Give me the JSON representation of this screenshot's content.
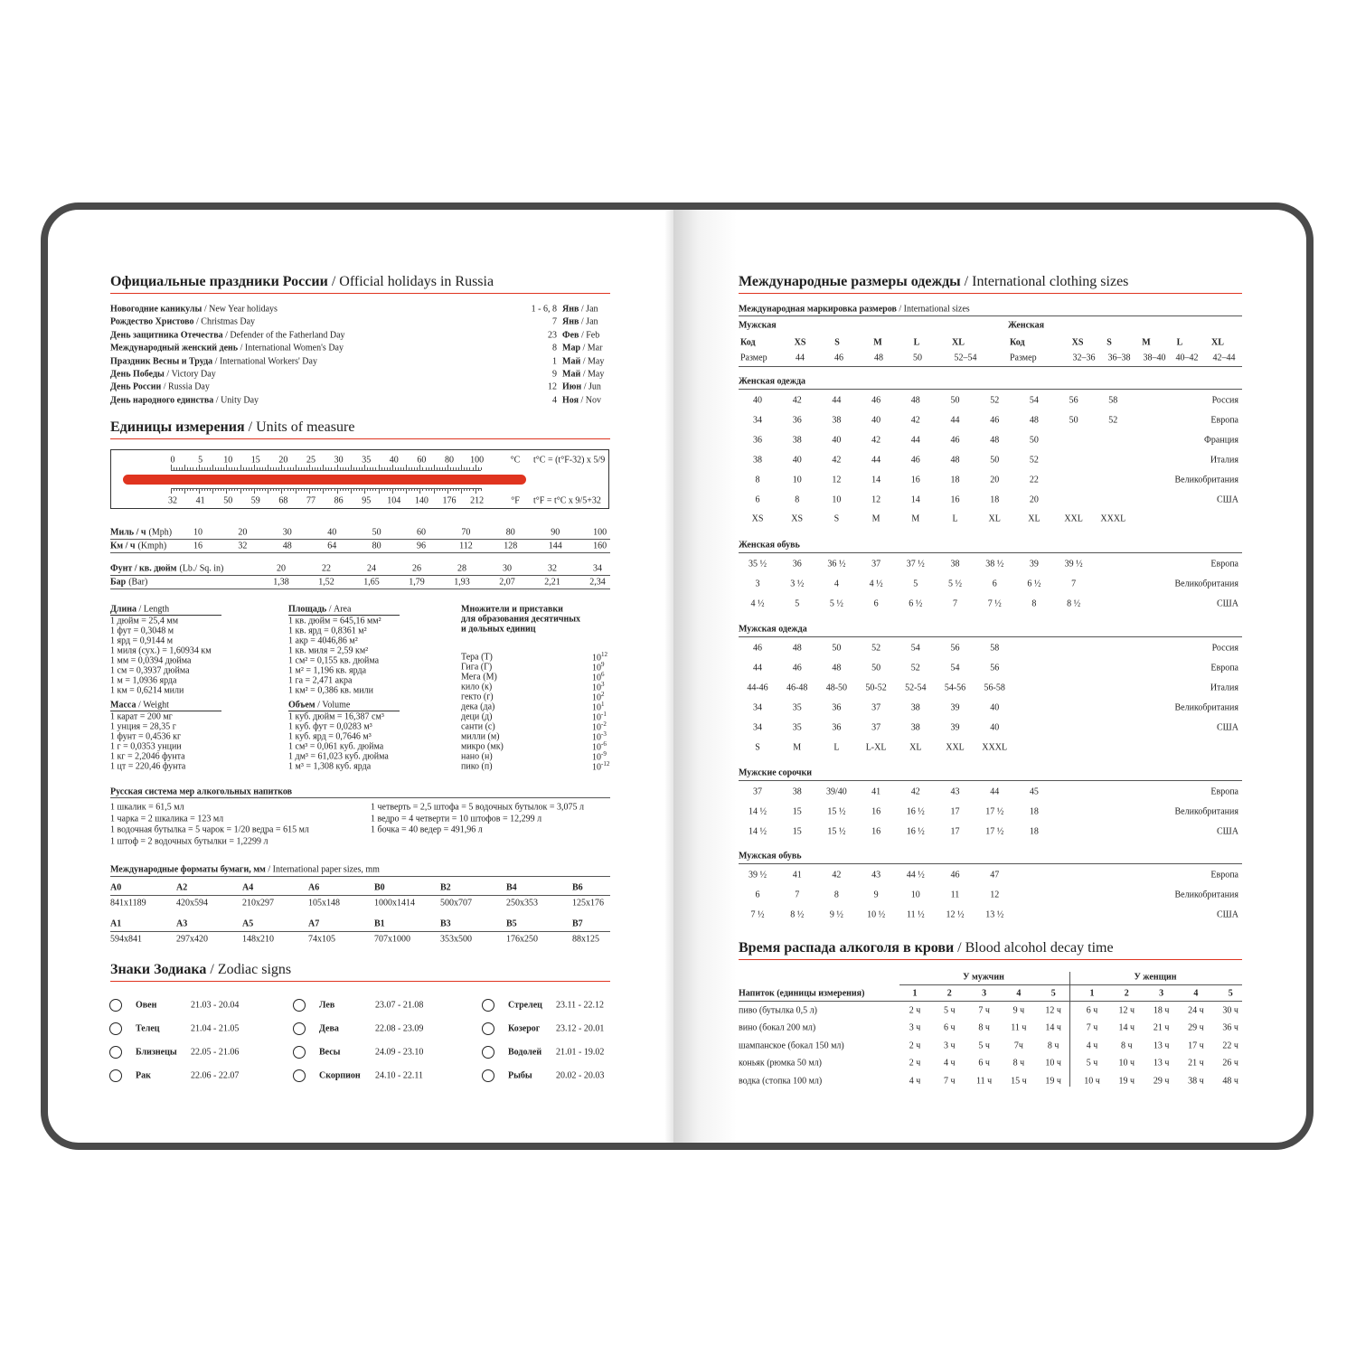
{
  "left": {
    "holidays": {
      "title": "Официальные праздники России",
      "title_en": "Official holidays in Russia",
      "rows": [
        {
          "name": "Новогодние каникулы",
          "en": "New Year holidays",
          "day": "1 - 6, 8",
          "month": "Янв",
          "month_en": "Jan"
        },
        {
          "name": "Рождество Христово",
          "en": "Christmas Day",
          "day": "7",
          "month": "Янв",
          "month_en": "Jan"
        },
        {
          "name": "День защитника Отечества",
          "en": "Defender of the Fatherland Day",
          "day": "23",
          "month": "Фев",
          "month_en": "Feb"
        },
        {
          "name": "Международный женский день",
          "en": "International Women's Day",
          "day": "8",
          "month": "Мар",
          "month_en": "Mar"
        },
        {
          "name": "Праздник Весны и Труда",
          "en": "International Workers' Day",
          "day": "1",
          "month": "Май",
          "month_en": "May"
        },
        {
          "name": "День Победы",
          "en": "Victory Day",
          "day": "9",
          "month": "Май",
          "month_en": "May"
        },
        {
          "name": "День России",
          "en": "Russia Day",
          "day": "12",
          "month": "Июн",
          "month_en": "Jun"
        },
        {
          "name": "День народного единства",
          "en": "Unity Day",
          "day": "4",
          "month": "Ноя",
          "month_en": "Nov"
        }
      ]
    },
    "units": {
      "title": "Единицы измерения",
      "title_en": "Units of measure",
      "celsius": [
        "0",
        "5",
        "10",
        "15",
        "20",
        "25",
        "30",
        "35",
        "40",
        "60",
        "80",
        "100"
      ],
      "c_unit": "°C",
      "c_formula": "t°C = (t°F-32) x 5/9",
      "fahrenheit": [
        "32",
        "41",
        "50",
        "59",
        "68",
        "77",
        "86",
        "95",
        "104",
        "140",
        "176",
        "212"
      ],
      "f_unit": "°F",
      "f_formula": "t°F = t°C x 9/5+32",
      "speed": [
        {
          "label": "Миль / ч",
          "unit": "(Mph)",
          "values": [
            "10",
            "20",
            "30",
            "40",
            "50",
            "60",
            "70",
            "80",
            "90",
            "100"
          ]
        },
        {
          "label": "Км / ч",
          "unit": "(Kmph)",
          "values": [
            "16",
            "32",
            "48",
            "64",
            "80",
            "96",
            "112",
            "128",
            "144",
            "160"
          ]
        }
      ],
      "pressure": [
        {
          "label": "Фунт / кв. дюйм",
          "unit": "(Lb./ Sq. in)",
          "values": [
            "20",
            "22",
            "24",
            "26",
            "28",
            "30",
            "32",
            "34"
          ]
        },
        {
          "label": "Бар",
          "unit": "(Bar)",
          "values": [
            "1,38",
            "1,52",
            "1,65",
            "1,79",
            "1,93",
            "2,07",
            "2,21",
            "2,34"
          ]
        }
      ],
      "conversions": [
        {
          "title": "Длина",
          "title_en": "Length",
          "lines": [
            "1 дюйм = 25,4 мм",
            "1 фут = 0,3048 м",
            "1 ярд = 0,9144 м",
            "1 миля (сух.) = 1,60934 км",
            "1 мм = 0,0394 дюйма",
            "1 см = 0,3937 дюйма",
            "1 м = 1,0936 ярда",
            "1 км = 0,6214 мили"
          ]
        },
        {
          "title": "Масса",
          "title_en": "Weight",
          "lines": [
            "1 карат = 200 мг",
            "1 унция = 28,35 г",
            "1 фунт = 0,4536 кг",
            "1 г = 0,0353 унции",
            "1 кг = 2,2046 фунта",
            "1 цт = 220,46 фунта"
          ]
        },
        {
          "title": "Площадь",
          "title_en": "Area",
          "lines": [
            "1 кв. дюйм = 645,16 мм²",
            "1 кв. ярд = 0,8361 м²",
            "1 акр = 4046,86 м²",
            "1 кв. миля = 2,59 км²",
            "1 см² = 0,155 кв. дюйма",
            "1 м² = 1,196 кв. ярда",
            "1 га = 2,471 акра",
            "1 км² = 0,386 кв. мили"
          ]
        },
        {
          "title": "Объем",
          "title_en": "Volume",
          "lines": [
            "1 куб. дюйм = 16,387 см³",
            "1 куб. фут = 0,0283 м³",
            "1 куб. ярд = 0,7646 м³",
            "1 см³ = 0,061 куб. дюйма",
            "1 дм³ = 61,023 куб. дюйма",
            "1 м³ = 1,308 куб. ярда"
          ]
        }
      ],
      "prefixes": {
        "title": [
          "Множители и приставки",
          "для образования десятичных",
          "и дольных единиц"
        ],
        "rows": [
          {
            "name": "Тера (Т)",
            "base": "10",
            "exp": "12"
          },
          {
            "name": "Гига (Г)",
            "base": "10",
            "exp": "9"
          },
          {
            "name": "Мега (М)",
            "base": "10",
            "exp": "6"
          },
          {
            "name": "кило (к)",
            "base": "10",
            "exp": "3"
          },
          {
            "name": "гекто (г)",
            "base": "10",
            "exp": "2"
          },
          {
            "name": "дека (да)",
            "base": "10",
            "exp": "1"
          },
          {
            "name": "деци (д)",
            "base": "10",
            "exp": "-1"
          },
          {
            "name": "санти (с)",
            "base": "10",
            "exp": "-2"
          },
          {
            "name": "милли (м)",
            "base": "10",
            "exp": "-3"
          },
          {
            "name": "микро (мк)",
            "base": "10",
            "exp": "-6"
          },
          {
            "name": "нано (н)",
            "base": "10",
            "exp": "-9"
          },
          {
            "name": "пико (п)",
            "base": "10",
            "exp": "-12"
          }
        ]
      }
    },
    "alcohol_measures": {
      "title": "Русская система мер алкогольных напитков",
      "left": [
        "1 шкалик = 61,5 мл",
        "1 чарка = 2 шкалика = 123 мл",
        "1 водочная бутылка = 5 чарок = 1/20 ведра = 615 мл",
        "1 штоф = 2 водочных бутылки = 1,2299 л"
      ],
      "right": [
        "1 четверть = 2,5 штофа = 5 водочных бутылок = 3,075 л",
        "1 ведро = 4 четверти = 10 штофов = 12,299 л",
        "1 бочка = 40 ведер = 491,96 л"
      ]
    },
    "paper": {
      "title": "Международные форматы бумаги, мм",
      "title_en": "International paper sizes, mm",
      "rows": [
        [
          {
            "name": "A0",
            "size": "841x1189"
          },
          {
            "name": "A2",
            "size": "420x594"
          },
          {
            "name": "A4",
            "size": "210x297"
          },
          {
            "name": "A6",
            "size": "105x148"
          },
          {
            "name": "B0",
            "size": "1000x1414"
          },
          {
            "name": "B2",
            "size": "500x707"
          },
          {
            "name": "B4",
            "size": "250x353"
          },
          {
            "name": "B6",
            "size": "125x176"
          }
        ],
        [
          {
            "name": "A1",
            "size": "594x841"
          },
          {
            "name": "A3",
            "size": "297x420"
          },
          {
            "name": "A5",
            "size": "148x210"
          },
          {
            "name": "A7",
            "size": "74x105"
          },
          {
            "name": "B1",
            "size": "707x1000"
          },
          {
            "name": "B3",
            "size": "353x500"
          },
          {
            "name": "B5",
            "size": "176x250"
          },
          {
            "name": "B7",
            "size": "88x125"
          }
        ]
      ]
    },
    "zodiac": {
      "title": "Знаки Зодиака",
      "title_en": "Zodiac signs",
      "columns": [
        [
          {
            "name": "Овен",
            "dates": "21.03 - 20.04"
          },
          {
            "name": "Телец",
            "dates": "21.04 - 21.05"
          },
          {
            "name": "Близнецы",
            "dates": "22.05 - 21.06"
          },
          {
            "name": "Рак",
            "dates": "22.06 - 22.07"
          }
        ],
        [
          {
            "name": "Лев",
            "dates": "23.07 - 21.08"
          },
          {
            "name": "Дева",
            "dates": "22.08 - 23.09"
          },
          {
            "name": "Весы",
            "dates": "24.09 - 23.10"
          },
          {
            "name": "Скорпион",
            "dates": "24.10 - 22.11"
          }
        ],
        [
          {
            "name": "Стрелец",
            "dates": "23.11 - 22.12"
          },
          {
            "name": "Козерог",
            "dates": "23.12 - 20.01"
          },
          {
            "name": "Водолей",
            "dates": "21.01 - 19.02"
          },
          {
            "name": "Рыбы",
            "dates": "20.02 - 20.03"
          }
        ]
      ]
    }
  },
  "right": {
    "clothing": {
      "title": "Международные размеры одежды",
      "title_en": "International clothing sizes",
      "marking": {
        "title": "Международная маркировка размеров",
        "title_en": "International sizes",
        "men": {
          "label": "Мужская",
          "code_label": "Код",
          "codes": [
            "XS",
            "S",
            "M",
            "L",
            "XL"
          ],
          "size_label": "Размер",
          "sizes": [
            "44",
            "46",
            "48",
            "50",
            "52–54"
          ]
        },
        "women": {
          "label": "Женская",
          "code_label": "Код",
          "codes": [
            "XS",
            "S",
            "M",
            "L",
            "XL"
          ],
          "size_label": "Размер",
          "sizes": [
            "32–36",
            "36–38",
            "38–40",
            "40–42",
            "42–44"
          ]
        }
      },
      "tables": [
        {
          "title": "Женская одежда",
          "rows": [
            {
              "cells": [
                "40",
                "42",
                "44",
                "46",
                "48",
                "50",
                "52",
                "54",
                "56",
                "58"
              ],
              "country": "Россия"
            },
            {
              "cells": [
                "34",
                "36",
                "38",
                "40",
                "42",
                "44",
                "46",
                "48",
                "50",
                "52"
              ],
              "country": "Европа"
            },
            {
              "cells": [
                "36",
                "38",
                "40",
                "42",
                "44",
                "46",
                "48",
                "50"
              ],
              "country": "Франция"
            },
            {
              "cells": [
                "38",
                "40",
                "42",
                "44",
                "46",
                "48",
                "50",
                "52"
              ],
              "country": "Италия"
            },
            {
              "cells": [
                "8",
                "10",
                "12",
                "14",
                "16",
                "18",
                "20",
                "22"
              ],
              "country": "Великобритания"
            },
            {
              "cells": [
                "6",
                "8",
                "10",
                "12",
                "14",
                "16",
                "18",
                "20"
              ],
              "country": "США"
            },
            {
              "cells": [
                "XS",
                "XS",
                "S",
                "M",
                "M",
                "L",
                "XL",
                "XL",
                "XXL",
                "XXXL"
              ]
            }
          ]
        },
        {
          "title": "Женская обувь",
          "rows": [
            {
              "cells": [
                "35 ½",
                "36",
                "36 ½",
                "37",
                "37 ½",
                "38",
                "38 ½",
                "39",
                "39 ½"
              ],
              "country": "Европа"
            },
            {
              "cells": [
                "3",
                "3 ½",
                "4",
                "4 ½",
                "5",
                "5 ½",
                "6",
                "6 ½",
                "7"
              ],
              "country": "Великобритания"
            },
            {
              "cells": [
                "4 ½",
                "5",
                "5 ½",
                "6",
                "6 ½",
                "7",
                "7 ½",
                "8",
                "8 ½"
              ],
              "country": "США"
            }
          ]
        },
        {
          "title": "Мужская одежда",
          "rows": [
            {
              "cells": [
                "46",
                "48",
                "50",
                "52",
                "54",
                "56",
                "58"
              ],
              "country": "Россия"
            },
            {
              "cells": [
                "44",
                "46",
                "48",
                "50",
                "52",
                "54",
                "56"
              ],
              "country": "Европа"
            },
            {
              "cells": [
                "44-46",
                "46-48",
                "48-50",
                "50-52",
                "52-54",
                "54-56",
                "56-58"
              ],
              "country": "Италия"
            },
            {
              "cells": [
                "34",
                "35",
                "36",
                "37",
                "38",
                "39",
                "40"
              ],
              "country": "Великобритания"
            },
            {
              "cells": [
                "34",
                "35",
                "36",
                "37",
                "38",
                "39",
                "40"
              ],
              "country": "США"
            },
            {
              "cells": [
                "S",
                "M",
                "L",
                "L-XL",
                "XL",
                "XXL",
                "XXXL"
              ]
            }
          ]
        },
        {
          "title": "Мужские сорочки",
          "rows": [
            {
              "cells": [
                "37",
                "38",
                "39/40",
                "41",
                "42",
                "43",
                "44",
                "45"
              ],
              "country": "Европа"
            },
            {
              "cells": [
                "14 ½",
                "15",
                "15 ½",
                "16",
                "16 ½",
                "17",
                "17 ½",
                "18"
              ],
              "country": "Великобритания"
            },
            {
              "cells": [
                "14 ½",
                "15",
                "15 ½",
                "16",
                "16 ½",
                "17",
                "17 ½",
                "18"
              ],
              "country": "США"
            }
          ]
        },
        {
          "title": "Мужская обувь",
          "rows": [
            {
              "cells": [
                "39 ½",
                "41",
                "42",
                "43",
                "44 ½",
                "46",
                "47"
              ],
              "country": "Европа"
            },
            {
              "cells": [
                "6",
                "7",
                "8",
                "9",
                "10",
                "11",
                "12"
              ],
              "country": "Великобритания"
            },
            {
              "cells": [
                "7 ½",
                "8 ½",
                "9 ½",
                "10 ½",
                "11 ½",
                "12 ½",
                "13 ½"
              ],
              "country": "США"
            }
          ]
        }
      ]
    },
    "alcohol": {
      "title": "Время распада алкоголя в крови",
      "title_en": "Blood alcohol decay time",
      "men_label": "У мужчин",
      "women_label": "У женщин",
      "header": "Напиток (единицы измерения)",
      "columns": [
        "1",
        "2",
        "3",
        "4",
        "5"
      ],
      "rows": [
        {
          "drink": "пиво (бутылка 0,5 л)",
          "men": [
            "2 ч",
            "5 ч",
            "7 ч",
            "9 ч",
            "12 ч"
          ],
          "women": [
            "6 ч",
            "12 ч",
            "18 ч",
            "24 ч",
            "30 ч"
          ]
        },
        {
          "drink": "вино (бокал 200 мл)",
          "men": [
            "3 ч",
            "6 ч",
            "8 ч",
            "11 ч",
            "14 ч"
          ],
          "women": [
            "7 ч",
            "14 ч",
            "21 ч",
            "29 ч",
            "36 ч"
          ]
        },
        {
          "drink": "шампанское (бокал 150 мл)",
          "men": [
            "2 ч",
            "3 ч",
            "5 ч",
            "7ч",
            "8 ч"
          ],
          "women": [
            "4 ч",
            "8 ч",
            "13 ч",
            "17 ч",
            "22 ч"
          ]
        },
        {
          "drink": "коньяк (рюмка 50 мл)",
          "men": [
            "2 ч",
            "4 ч",
            "6 ч",
            "8 ч",
            "10 ч"
          ],
          "women": [
            "5 ч",
            "10 ч",
            "13 ч",
            "21 ч",
            "26 ч"
          ]
        },
        {
          "drink": "водка (стопка 100 мл)",
          "men": [
            "4 ч",
            "7 ч",
            "11 ч",
            "15 ч",
            "19 ч"
          ],
          "women": [
            "10 ч",
            "19 ч",
            "29 ч",
            "38 ч",
            "48 ч"
          ]
        }
      ]
    }
  }
}
